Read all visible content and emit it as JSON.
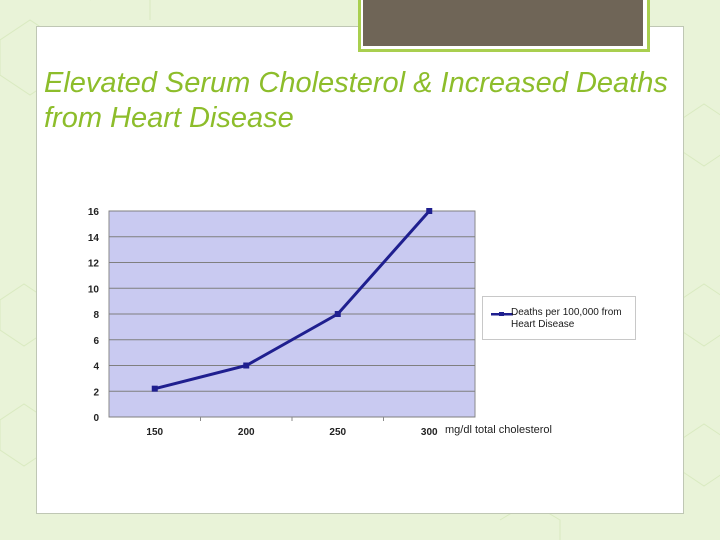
{
  "slide": {
    "title": "Elevated Serum Cholesterol & Increased Deaths from Heart Disease"
  },
  "colors": {
    "background": "#e9f3d8",
    "title": "#8dbd2b",
    "accent_box": "#6f6557",
    "accent_border": "#a9cf4f",
    "plot_area": "#c9caf1",
    "series_line": "#1f1f8f",
    "gridline": "#7f7f7f"
  },
  "chart_data": {
    "type": "line",
    "x": [
      "150",
      "200",
      "250",
      "300"
    ],
    "series": [
      {
        "name": "Deaths per 100,000 from Heart Disease",
        "values": [
          2.2,
          4,
          8,
          16
        ]
      }
    ],
    "ylim": [
      0,
      16
    ],
    "yticks": [
      "0",
      "2",
      "4",
      "6",
      "8",
      "10",
      "12",
      "14",
      "16"
    ],
    "xlabel": "mg/dl total cholesterol",
    "ylabel": "",
    "grid": true,
    "legend_position": "right",
    "marker": "square"
  }
}
